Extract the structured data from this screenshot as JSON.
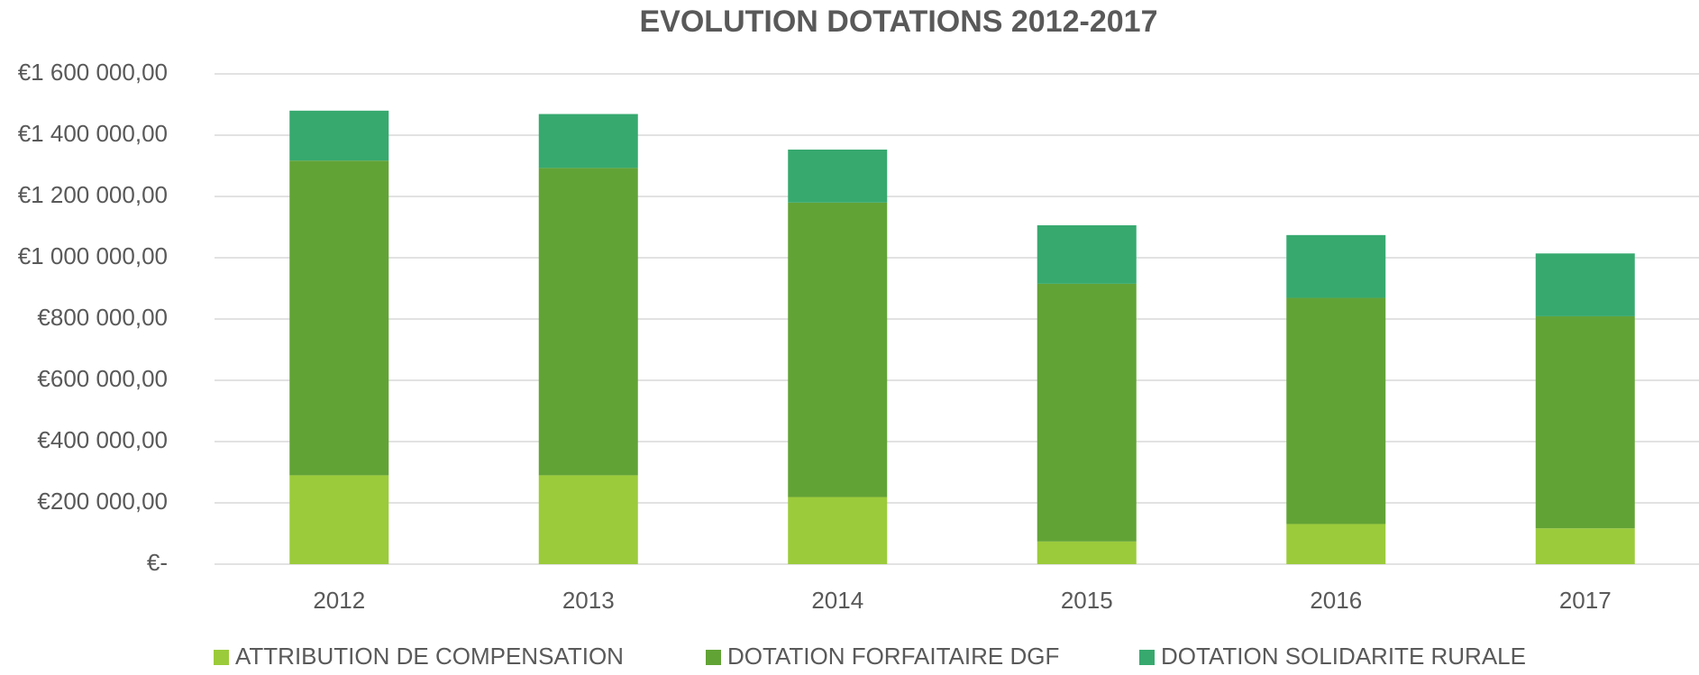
{
  "chart_data": {
    "type": "stacked_bar",
    "title": "EVOLUTION DOTATIONS 2012-2017",
    "categories": [
      "2012",
      "2013",
      "2014",
      "2015",
      "2016",
      "2017"
    ],
    "series": [
      {
        "name": "ATTRIBUTION DE COMPENSATION",
        "color": "#9BCB3B",
        "values": [
          290000,
          290000,
          219000,
          74000,
          131000,
          117000
        ]
      },
      {
        "name": "DOTATION FORFAITAIRE DGF",
        "color": "#62A336",
        "values": [
          1027000,
          1003000,
          961000,
          841000,
          738000,
          692000
        ]
      },
      {
        "name": "DOTATION SOLIDARITE RURALE",
        "color": "#37A96F",
        "values": [
          163000,
          176000,
          173000,
          191000,
          205000,
          205000
        ]
      }
    ],
    "ylim": [
      0,
      1600000
    ],
    "yticks": [
      {
        "value": 0,
        "label": "€-"
      },
      {
        "value": 200000,
        "label": "€200 000,00"
      },
      {
        "value": 400000,
        "label": "€400 000,00"
      },
      {
        "value": 600000,
        "label": "€600 000,00"
      },
      {
        "value": 800000,
        "label": "€800 000,00"
      },
      {
        "value": 1000000,
        "label": "€1 000 000,00"
      },
      {
        "value": 1200000,
        "label": "€1 200 000,00"
      },
      {
        "value": 1400000,
        "label": "€1 400 000,00"
      },
      {
        "value": 1600000,
        "label": "€1 600 000,00"
      }
    ],
    "grid": true,
    "legend": "bottom"
  }
}
